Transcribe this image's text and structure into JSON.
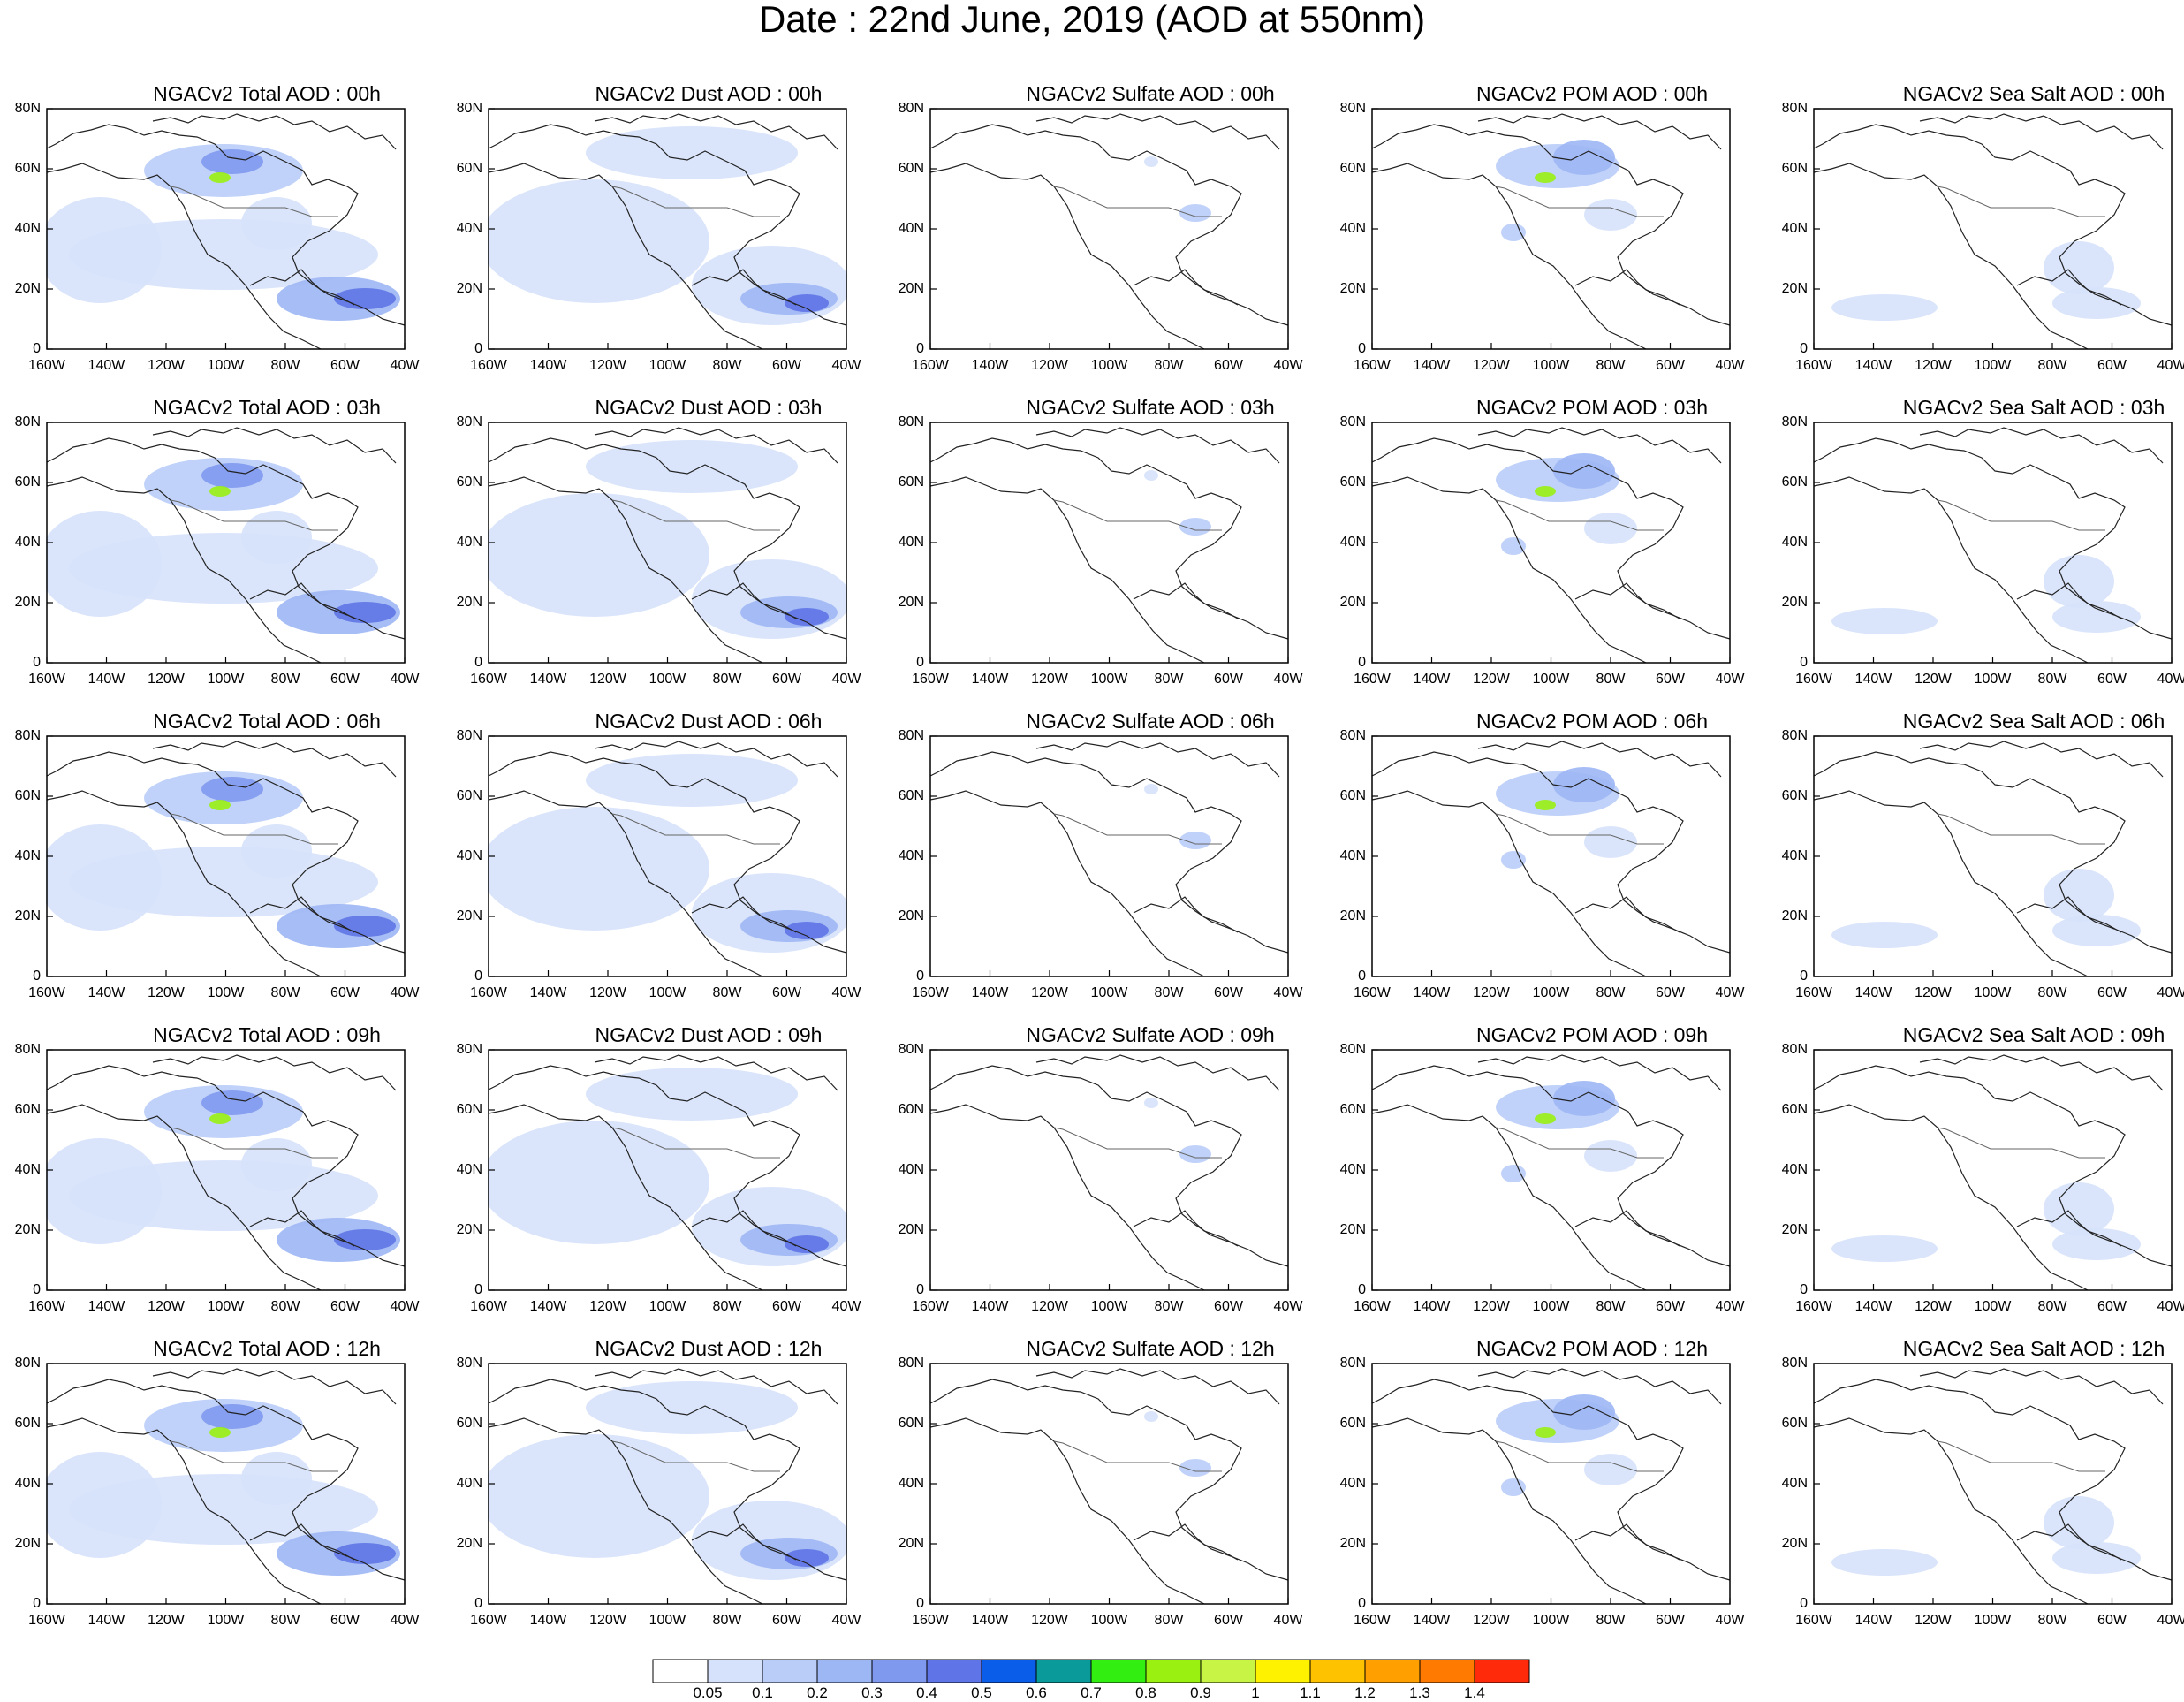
{
  "title": "Date : 22nd June, 2019 (AOD at 550nm)",
  "lat_labels": [
    "80N",
    "60N",
    "40N",
    "20N",
    "0"
  ],
  "lon_labels": [
    "160W",
    "140W",
    "120W",
    "100W",
    "80W",
    "60W",
    "40W"
  ],
  "species": [
    {
      "id": "total",
      "color_scale": 1.0
    },
    {
      "id": "dust",
      "color_scale": 0.8
    },
    {
      "id": "sulfate",
      "color_scale": 0.35
    },
    {
      "id": "pom",
      "color_scale": 0.75
    },
    {
      "id": "seasalt",
      "color_scale": 0.3
    }
  ],
  "panels": [
    [
      "NGACv2 Total AOD : 00h",
      "NGACv2 Dust AOD : 00h",
      "NGACv2 Sulfate AOD : 00h",
      "NGACv2 POM AOD : 00h",
      "NGACv2 Sea Salt AOD : 00h"
    ],
    [
      "NGACv2 Total AOD : 03h",
      "NGACv2 Dust AOD : 03h",
      "NGACv2 Sulfate AOD : 03h",
      "NGACv2 POM AOD : 03h",
      "NGACv2 Sea Salt AOD : 03h"
    ],
    [
      "NGACv2 Total AOD : 06h",
      "NGACv2 Dust AOD : 06h",
      "NGACv2 Sulfate AOD : 06h",
      "NGACv2 POM AOD : 06h",
      "NGACv2 Sea Salt AOD : 06h"
    ],
    [
      "NGACv2 Total AOD : 09h",
      "NGACv2 Dust AOD : 09h",
      "NGACv2 Sulfate AOD : 09h",
      "NGACv2 POM AOD : 09h",
      "NGACv2 Sea Salt  AOD : 09h"
    ],
    [
      "NGACv2 Total AOD  : 12h",
      "NGACv2 Dust AOD : 12h",
      "NGACv2 Sulfate AOD : 12h",
      "NGACv2 POM  AOD : 12h",
      "NGACv2 Sea Salt  AOD : 12h"
    ]
  ],
  "colorbar": {
    "colors": [
      "#ffffff",
      "#d6e2fb",
      "#b9cdf8",
      "#9db6f4",
      "#7f99ee",
      "#5f74e6",
      "#0a5de8",
      "#0a9a9a",
      "#33ee11",
      "#99f011",
      "#c8f545",
      "#fff200",
      "#ffc200",
      "#ffa000",
      "#ff7a00",
      "#ff2a0a"
    ],
    "labels": [
      "0.05",
      "0.1",
      "0.2",
      "0.3",
      "0.4",
      "0.5",
      "0.6",
      "0.7",
      "0.8",
      "0.9",
      "1",
      "1.1",
      "1.2",
      "1.3",
      "1.4"
    ]
  },
  "plume_colors": {
    "light": "#d6e2fb",
    "mid": "#b9cdf8",
    "strong": "#9db6f4",
    "dense": "#7f99ee",
    "peak": "#5f74e6",
    "hot": "#99f011"
  }
}
